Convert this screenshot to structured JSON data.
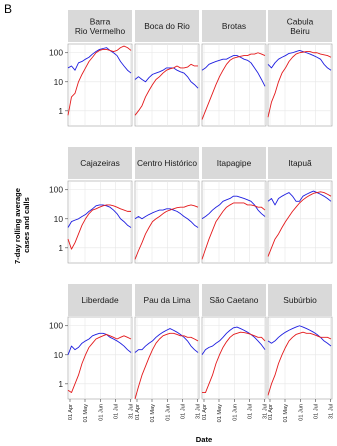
{
  "figure": {
    "panel_letter": "B",
    "ylabel": "7-day rolling average\ncases and calls",
    "xlabel": "Date"
  },
  "colors": {
    "calls": "#1f1fe0",
    "cases": "#e41a1c"
  },
  "chart_data": {
    "type": "line",
    "title": "",
    "xlabel": "Date",
    "ylabel": "7-day rolling average cases and calls",
    "y_scale": "log10",
    "ylim": [
      0.3,
      200
    ],
    "y_ticks": [
      1,
      10,
      100
    ],
    "y_tick_labels": [
      "1",
      "10",
      "100"
    ],
    "xlim": [
      "2020-03-28",
      "2020-08-03"
    ],
    "x_ticks": [
      "2020-04-01",
      "2020-05-01",
      "2020-06-01",
      "2020-07-01",
      "2020-07-31"
    ],
    "x_tick_labels": [
      "01 Apr",
      "01 May",
      "01 Jun",
      "01 Jul",
      "31 Jul"
    ],
    "series_colors": {
      "calls": "#1f1fe0",
      "cases": "#e41a1c"
    },
    "x": [
      "2020-03-28",
      "2020-04-04",
      "2020-04-11",
      "2020-04-18",
      "2020-04-25",
      "2020-05-02",
      "2020-05-09",
      "2020-05-16",
      "2020-05-23",
      "2020-05-30",
      "2020-06-06",
      "2020-06-13",
      "2020-06-20",
      "2020-06-27",
      "2020-07-04",
      "2020-07-11",
      "2020-07-18",
      "2020-07-25",
      "2020-08-01"
    ],
    "panels": [
      {
        "name": "Barra\nRio Vermelho",
        "calls": [
          30,
          35,
          25,
          45,
          50,
          60,
          70,
          90,
          110,
          130,
          140,
          150,
          120,
          100,
          80,
          50,
          35,
          25,
          20
        ],
        "cases": [
          0.7,
          3,
          4,
          10,
          18,
          30,
          50,
          70,
          100,
          120,
          130,
          130,
          120,
          110,
          120,
          150,
          170,
          150,
          120
        ]
      },
      {
        "name": "Boca do Rio",
        "calls": [
          12,
          15,
          12,
          10,
          14,
          18,
          20,
          22,
          25,
          30,
          30,
          30,
          25,
          22,
          20,
          15,
          10,
          8,
          6
        ],
        "cases": [
          0.7,
          1,
          1.5,
          3,
          5,
          8,
          12,
          15,
          20,
          25,
          28,
          30,
          35,
          30,
          30,
          32,
          40,
          35,
          35
        ]
      },
      {
        "name": "Brotas",
        "calls": [
          25,
          30,
          40,
          45,
          50,
          55,
          60,
          60,
          70,
          80,
          80,
          70,
          60,
          55,
          45,
          30,
          20,
          12,
          7
        ],
        "cases": [
          0.5,
          1,
          2,
          4,
          8,
          15,
          25,
          40,
          55,
          65,
          70,
          75,
          80,
          80,
          90,
          90,
          100,
          90,
          80
        ]
      },
      {
        "name": "Cabula\nBeiru",
        "calls": [
          40,
          30,
          45,
          60,
          70,
          80,
          95,
          100,
          110,
          120,
          110,
          100,
          90,
          80,
          70,
          60,
          40,
          30,
          25
        ],
        "cases": [
          0.6,
          2,
          4,
          10,
          20,
          30,
          50,
          70,
          90,
          100,
          105,
          110,
          110,
          100,
          100,
          90,
          85,
          80,
          70
        ]
      },
      {
        "name": "Cajazeiras",
        "calls": [
          5,
          8,
          9,
          10,
          12,
          14,
          18,
          22,
          28,
          30,
          30,
          28,
          25,
          20,
          15,
          10,
          8,
          6,
          5
        ],
        "cases": [
          2,
          0.9,
          1.5,
          3,
          6,
          10,
          15,
          20,
          22,
          25,
          28,
          30,
          30,
          28,
          25,
          22,
          20,
          18,
          18
        ]
      },
      {
        "name": "Centro Histórico",
        "calls": [
          10,
          12,
          10,
          12,
          14,
          16,
          18,
          20,
          20,
          22,
          22,
          20,
          18,
          15,
          12,
          10,
          8,
          6,
          5
        ],
        "cases": [
          0.4,
          0.8,
          1.5,
          3,
          5,
          8,
          10,
          12,
          15,
          18,
          20,
          22,
          24,
          25,
          25,
          28,
          30,
          28,
          25
        ]
      },
      {
        "name": "Itapagipe",
        "calls": [
          10,
          12,
          15,
          20,
          25,
          30,
          40,
          45,
          50,
          60,
          60,
          55,
          50,
          45,
          40,
          30,
          20,
          15,
          12
        ],
        "cases": [
          0.4,
          0.9,
          2,
          4,
          8,
          12,
          18,
          25,
          30,
          35,
          35,
          35,
          35,
          30,
          30,
          28,
          25,
          25,
          20
        ]
      },
      {
        "name": "Itapuã",
        "calls": [
          40,
          50,
          30,
          50,
          60,
          70,
          80,
          60,
          40,
          40,
          60,
          70,
          80,
          90,
          80,
          70,
          60,
          50,
          40
        ],
        "cases": [
          0.5,
          1,
          2,
          3,
          5,
          8,
          12,
          18,
          25,
          35,
          45,
          55,
          65,
          75,
          80,
          85,
          80,
          70,
          60
        ]
      },
      {
        "name": "Liberdade",
        "calls": [
          10,
          20,
          15,
          18,
          25,
          30,
          35,
          45,
          50,
          55,
          55,
          50,
          40,
          35,
          30,
          25,
          20,
          15,
          12
        ],
        "cases": [
          0.6,
          0.5,
          1,
          2,
          5,
          10,
          18,
          25,
          35,
          40,
          45,
          50,
          45,
          40,
          35,
          40,
          45,
          40,
          35
        ]
      },
      {
        "name": "Pau da Lima",
        "calls": [
          12,
          15,
          15,
          20,
          25,
          30,
          40,
          50,
          60,
          70,
          80,
          70,
          60,
          50,
          40,
          30,
          20,
          15,
          12
        ],
        "cases": [
          0.3,
          0.8,
          2,
          4,
          8,
          15,
          25,
          35,
          45,
          50,
          55,
          55,
          50,
          45,
          45,
          40,
          40,
          35,
          30
        ]
      },
      {
        "name": "São Caetano",
        "calls": [
          10,
          15,
          18,
          20,
          25,
          30,
          40,
          55,
          70,
          85,
          90,
          80,
          70,
          60,
          50,
          40,
          30,
          22,
          15
        ],
        "cases": [
          0.5,
          0.5,
          1,
          2,
          5,
          10,
          18,
          28,
          40,
          50,
          55,
          60,
          58,
          55,
          50,
          45,
          40,
          40,
          30
        ]
      },
      {
        "name": "Subúrbio",
        "calls": [
          30,
          25,
          30,
          40,
          50,
          60,
          70,
          80,
          90,
          100,
          90,
          80,
          70,
          60,
          50,
          40,
          30,
          25,
          20
        ],
        "cases": [
          0.4,
          1,
          2,
          5,
          10,
          18,
          30,
          40,
          50,
          55,
          60,
          55,
          55,
          50,
          45,
          40,
          40,
          40,
          35
        ]
      }
    ]
  }
}
